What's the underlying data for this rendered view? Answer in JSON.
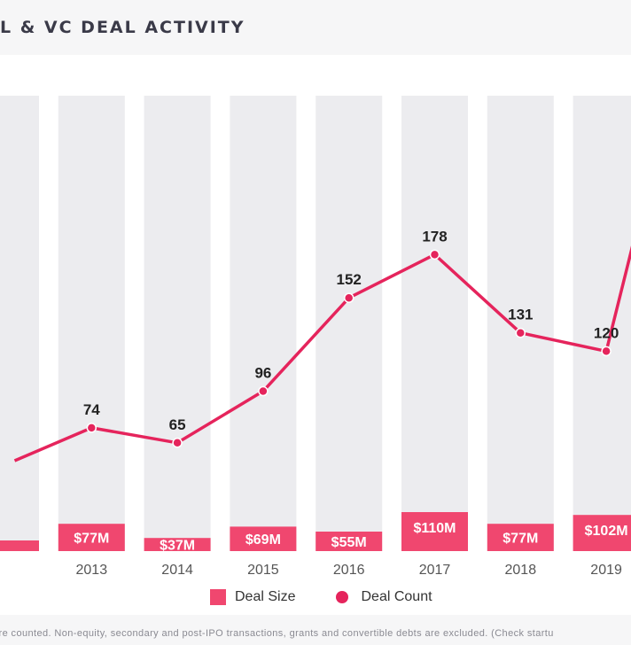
{
  "header": {
    "title": "L & VC DEAL ACTIVITY"
  },
  "legend": {
    "deal_size": "Deal Size",
    "deal_count": "Deal Count"
  },
  "footnote": "are counted. Non-equity, secondary and post-IPO transactions, grants and convertible debts are excluded. (Check startu",
  "colors": {
    "bar_bg": "#ececef",
    "deal_size": "#f0476f",
    "deal_count": "#e5245c",
    "text": "#222222",
    "axis_label": "#555555"
  },
  "chart_data": {
    "type": "bar",
    "categories": [
      "",
      "2013",
      "2014",
      "2015",
      "2016",
      "2017",
      "2018",
      "2019",
      ""
    ],
    "series": [
      {
        "name": "Deal Size",
        "labels": [
          "",
          "$77M",
          "$37M",
          "$69M",
          "$55M",
          "$110M",
          "$77M",
          "$102M",
          ""
        ],
        "values": [
          null,
          77,
          37,
          69,
          55,
          110,
          77,
          102,
          null
        ]
      },
      {
        "name": "Deal Count",
        "labels": [
          "",
          "74",
          "65",
          "96",
          "152",
          "178",
          "131",
          "120",
          ""
        ],
        "values": [
          null,
          74,
          65,
          96,
          152,
          178,
          131,
          120,
          null
        ]
      }
    ]
  }
}
